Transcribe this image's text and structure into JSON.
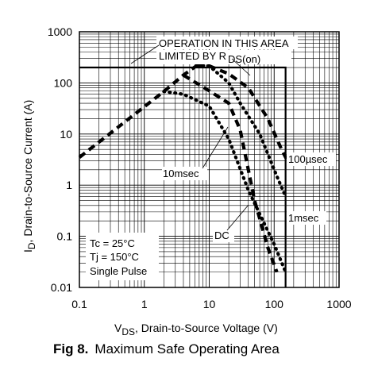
{
  "chart_data": {
    "type": "line",
    "x_scale": "log",
    "y_scale": "log",
    "xlim": [
      0.1,
      1000
    ],
    "ylim": [
      0.01,
      1000
    ],
    "grid": true,
    "xlabel": "VDS, Drain-to-Source Voltage (V)",
    "xlabel_main": "V",
    "xlabel_sub": "DS",
    "xlabel_rest": ", Drain-to-Source Voltage (V)",
    "ylabel": "ID, Drain-to-Source Current (A)",
    "ylabel_main": "I",
    "ylabel_sub": "D",
    "ylabel_rest": ", Drain-to-Source Current (A)",
    "x_ticks": [
      {
        "value": 0.1,
        "label": "0.1"
      },
      {
        "value": 1,
        "label": "1"
      },
      {
        "value": 10,
        "label": "10"
      },
      {
        "value": 100,
        "label": "100"
      },
      {
        "value": 1000,
        "label": "1000"
      }
    ],
    "y_ticks": [
      {
        "value": 1000,
        "label": "1000"
      },
      {
        "value": 100,
        "label": "100"
      },
      {
        "value": 10,
        "label": "10"
      },
      {
        "value": 1,
        "label": "1"
      },
      {
        "value": 0.1,
        "label": "0.1"
      },
      {
        "value": 0.01,
        "label": "0.01"
      }
    ],
    "limit_box": {
      "x_max": 150,
      "y_max": 200
    },
    "rds_limit_line": [
      [
        0.1,
        3.5
      ],
      [
        2,
        68
      ],
      [
        4,
        142
      ],
      [
        6.5,
        220
      ]
    ],
    "series": [
      {
        "name": "100µsec",
        "style": "dashed",
        "points": [
          [
            6.5,
            220
          ],
          [
            10,
            215
          ],
          [
            20,
            150
          ],
          [
            40,
            80
          ],
          [
            80,
            20
          ],
          [
            130,
            5
          ],
          [
            160,
            3
          ]
        ]
      },
      {
        "name": "1msec",
        "style": "dotted",
        "points": [
          [
            6.5,
            220
          ],
          [
            10,
            215
          ],
          [
            20,
            100
          ],
          [
            30,
            40
          ],
          [
            60,
            10
          ],
          [
            110,
            1.5
          ],
          [
            150,
            0.6
          ]
        ]
      },
      {
        "name": "10msec",
        "style": "dashed",
        "points": [
          [
            4,
            142
          ],
          [
            10,
            70
          ],
          [
            20,
            40
          ],
          [
            30,
            12
          ],
          [
            50,
            0.5
          ],
          [
            80,
            0.06
          ],
          [
            110,
            0.02
          ]
        ]
      },
      {
        "name": "DC",
        "style": "dotted",
        "points": [
          [
            2,
            68
          ],
          [
            4,
            60
          ],
          [
            10,
            35
          ],
          [
            20,
            8
          ],
          [
            40,
            0.8
          ],
          [
            100,
            0.07
          ],
          [
            150,
            0.02
          ]
        ]
      }
    ],
    "annotations": {
      "area_line1": "OPERATION IN THIS AREA",
      "area_line2": "LIMITED BY R",
      "area_sub": "DS(on)",
      "conditions": [
        "Tc = 25°C",
        "Tj = 150°C",
        "Single Pulse"
      ],
      "label_100us": "100µsec",
      "label_1ms": "1msec",
      "label_10ms": "10msec",
      "label_dc": "DC"
    },
    "caption_fig": "Fig 8.",
    "caption_title": "Maximum Safe Operating Area"
  }
}
